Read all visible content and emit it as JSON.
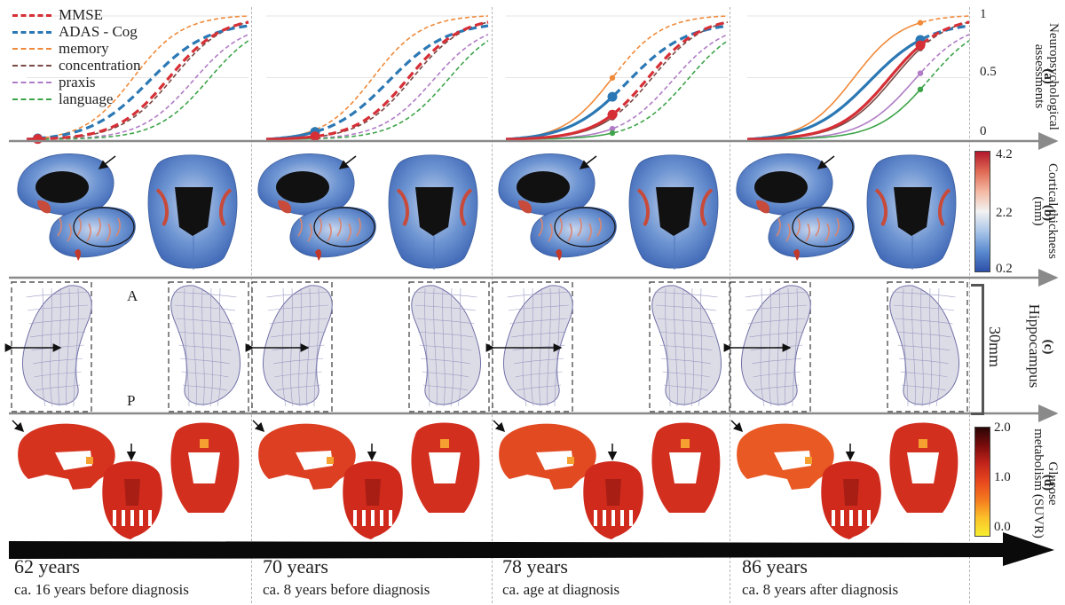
{
  "legend": [
    {
      "label": "MMSE",
      "color": "#d62f36",
      "style": "thick"
    },
    {
      "label": "ADAS - Cog",
      "color": "#2b78b4",
      "style": "thick"
    },
    {
      "label": "memory",
      "color": "#f08a3a",
      "style": "thin"
    },
    {
      "label": "concentration",
      "color": "#7a4a44",
      "style": "thin"
    },
    {
      "label": "praxis",
      "color": "#b07cc6",
      "style": "thin"
    },
    {
      "label": "language",
      "color": "#3ea44a",
      "style": "thin"
    }
  ],
  "rows": {
    "a": {
      "title": "Neuropsychological\nassessments",
      "tag": "(a)",
      "ticks": [
        "1",
        "0.5",
        "0"
      ]
    },
    "b": {
      "title": "Cortical thickness\n(mm)",
      "tag": "(b)",
      "ticks": [
        "4.2",
        "2.2",
        "0.2"
      ]
    },
    "c": {
      "title": "Hippocampus",
      "tag": "(c)",
      "scale_label": "30mm",
      "anterior": "A",
      "posterior": "P"
    },
    "d": {
      "title": "Glucose\nmetabolism (SUVR)",
      "tag": "(d)",
      "ticks": [
        "2.0",
        "1.0",
        "0.0"
      ]
    }
  },
  "timepoints": [
    {
      "age": "62 years",
      "note": "ca. 16 years before diagnosis",
      "t": 0.05
    },
    {
      "age": "70 years",
      "note": "ca. 8 years before diagnosis",
      "t": 0.22
    },
    {
      "age": "78 years",
      "note": "ca. age at diagnosis",
      "t": 0.48
    },
    {
      "age": "86 years",
      "note": "ca. 8 years after diagnosis",
      "t": 0.78
    }
  ],
  "colors": {
    "axis": "#8a8a8a",
    "divider": "#b5b5b5",
    "brain_blue": "#4f7fc6",
    "brain_red": "#c84a3a",
    "hippo": "#d8d8e0",
    "pet_red": "#d5301f",
    "pet_orange": "#f26a25"
  }
}
